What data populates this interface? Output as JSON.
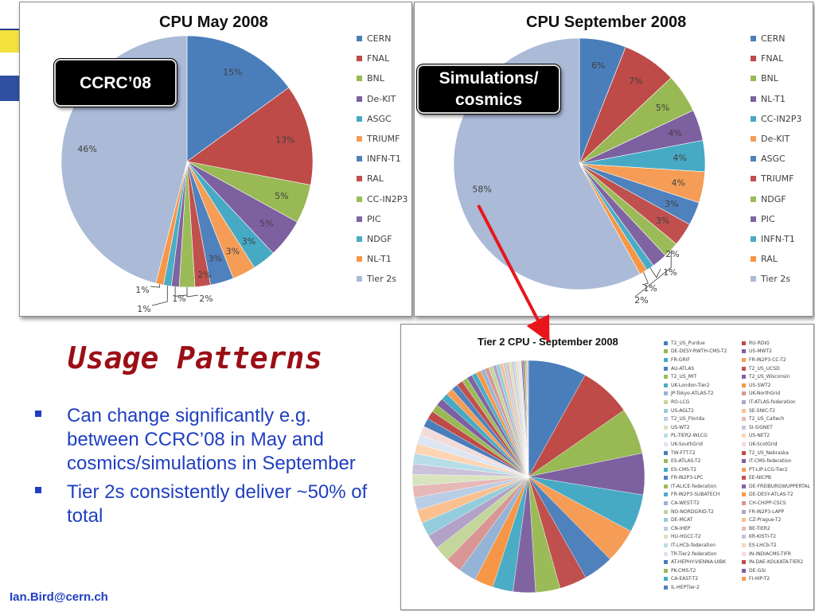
{
  "slide": {
    "title": "Usage Patterns",
    "bullets": [
      "Can change significantly e.g. between CCRC’08 in May and cosmics/simulations in September",
      "Tier 2s consistently deliver ~50% of total"
    ],
    "footer_email": "Ian.Bird@cern.ch",
    "callouts": {
      "may": "CCRC’08",
      "september_line1": "Simulations/",
      "september_line2": "cosmics"
    }
  },
  "chart_data": [
    {
      "id": "may",
      "type": "pie",
      "title": "CPU May 2008",
      "legend_position": "right",
      "categories": [
        "CERN",
        "FNAL",
        "BNL",
        "De-KIT",
        "ASGC",
        "TRIUMF",
        "INFN-T1",
        "RAL",
        "CC-IN2P3",
        "PIC",
        "NDGF",
        "NL-T1",
        "Tier 2s"
      ],
      "values": [
        15,
        13,
        5,
        5,
        3,
        3,
        3,
        2,
        2,
        1,
        1,
        1,
        46
      ],
      "labels": [
        "15%",
        "13%",
        "5%",
        "5%",
        "3%",
        "3%",
        "3%",
        "2%",
        "2%",
        "1%",
        "1%",
        "1%",
        "46%"
      ],
      "colors": [
        "#4a7ebb",
        "#be4b48",
        "#98b954",
        "#7d60a0",
        "#46aac5",
        "#f59d56",
        "#4f81bd",
        "#c0504d",
        "#9bbb59",
        "#8064a2",
        "#4bacc6",
        "#f79646",
        "#aabad7"
      ]
    },
    {
      "id": "september",
      "type": "pie",
      "title": "CPU September 2008",
      "legend_position": "right",
      "categories": [
        "CERN",
        "FNAL",
        "BNL",
        "NL-T1",
        "CC-IN2P3",
        "De-KIT",
        "ASGC",
        "TRIUMF",
        "NDGF",
        "PIC",
        "INFN-T1",
        "RAL",
        "Tier 2s"
      ],
      "values": [
        6,
        7,
        5,
        4,
        4,
        4,
        3,
        3,
        2,
        2,
        1,
        1,
        58
      ],
      "labels": [
        "6%",
        "7%",
        "5%",
        "4%",
        "4%",
        "4%",
        "3%",
        "3%",
        "2%",
        "2%",
        "1%",
        "1%",
        "58%"
      ],
      "colors": [
        "#4a7ebb",
        "#be4b48",
        "#98b954",
        "#7d60a0",
        "#46aac5",
        "#f59d56",
        "#4f81bd",
        "#c0504d",
        "#9bbb59",
        "#8064a2",
        "#4bacc6",
        "#f79646",
        "#aabad7"
      ]
    },
    {
      "id": "tier2",
      "type": "pie",
      "title": "Tier 2 CPU - September 2008",
      "legend_position": "right",
      "categories": [
        "T2_US_Purdue",
        "RU-RDIG",
        "DE-DESY-RWTH-CMS-T2",
        "US-MWT2",
        "FR-GRIF",
        "FR-IN2P3-CC-T2",
        "AU-ATLAS",
        "T2_US_UCSD",
        "T2_US_MIT",
        "T2_US_Wisconsin",
        "UK-London-Tier2",
        "US-SWT2",
        "JP-Tokyo-ATLAS-T2",
        "UK-NorthGrid",
        "RO-LCG",
        "IT-ATLAS-federation",
        "US-AGLT2",
        "SE-SNIC-T2",
        "T2_US_Florida",
        "T2_US_Caltech",
        "US-WT2",
        "SI-SiGNET",
        "PL-TIER2-WLCG",
        "US-NET2",
        "UK-SouthGrid",
        "UK-ScotGrid",
        "TW-FTT-T2",
        "T2_US_Nebraska",
        "ES-ATLAS-T2",
        "IT-CMS-federation",
        "ES-CMS-T2",
        "PT-LIP-LCG-Tier2",
        "FR-IN2P3-LPC",
        "EE-NICPB",
        "IT-ALICE-federation",
        "DE-FREIBURGWUPPERTAL",
        "FR-IN2P3-SUBATECH",
        "DE-DESY-ATLAS-T2",
        "CA-WEST-T2",
        "CH-CHIPP-CSCS",
        "NO-NORDGRID-T2",
        "FR-IN2P3-LAPP",
        "DE-MCAT",
        "CZ-Prague-T2",
        "CN-IHEP",
        "BE-TIER2",
        "HU-HGCC-T2",
        "KR-KISTI-T2",
        "IT-LHCb-federation",
        "ES-LHCb-T2",
        "TR-Tier2-federation",
        "IN-INDIACMS-TIFR",
        "AT-HEPHY-VIENNA-UIBK",
        "IN-DAE-KOLKATA-TIER2",
        "PK-CMS-T2",
        "DE-GSI",
        "CA-EAST-T2",
        "FI-HIP-T2",
        "IL-HEPTier-2"
      ],
      "values": [
        8.3,
        7.4,
        6.6,
        5.9,
        5.4,
        4.9,
        4.3,
        3.9,
        3.5,
        3.2,
        2.9,
        2.7,
        2.5,
        2.3,
        2.2,
        2.1,
        2.0,
        1.9,
        1.8,
        1.7,
        1.6,
        1.5,
        1.5,
        1.4,
        1.3,
        1.3,
        1.2,
        1.2,
        1.1,
        1.1,
        1.0,
        1.0,
        0.9,
        0.9,
        0.8,
        0.8,
        0.7,
        0.7,
        0.6,
        0.6,
        0.6,
        0.5,
        0.5,
        0.5,
        0.4,
        0.4,
        0.4,
        0.3,
        0.3,
        0.3,
        0.3,
        0.2,
        0.2,
        0.2,
        0.2,
        0.1,
        0.1,
        0.1,
        0.1
      ],
      "colors": [
        "#4a7ebb",
        "#be4b48",
        "#98b954",
        "#7d60a0",
        "#46aac5",
        "#f59d56",
        "#4f81bd",
        "#c0504d",
        "#9bbb59",
        "#8064a2",
        "#4bacc6",
        "#f79646",
        "#95b3d7",
        "#d99694",
        "#c3d69b",
        "#b3a2c7",
        "#93cddd",
        "#fac090",
        "#b9cde5",
        "#e6b9b8",
        "#d7e4bd",
        "#ccc1da",
        "#b7dee8",
        "#fcd5b5",
        "#dce6f2",
        "#f2dcdb"
      ]
    }
  ]
}
